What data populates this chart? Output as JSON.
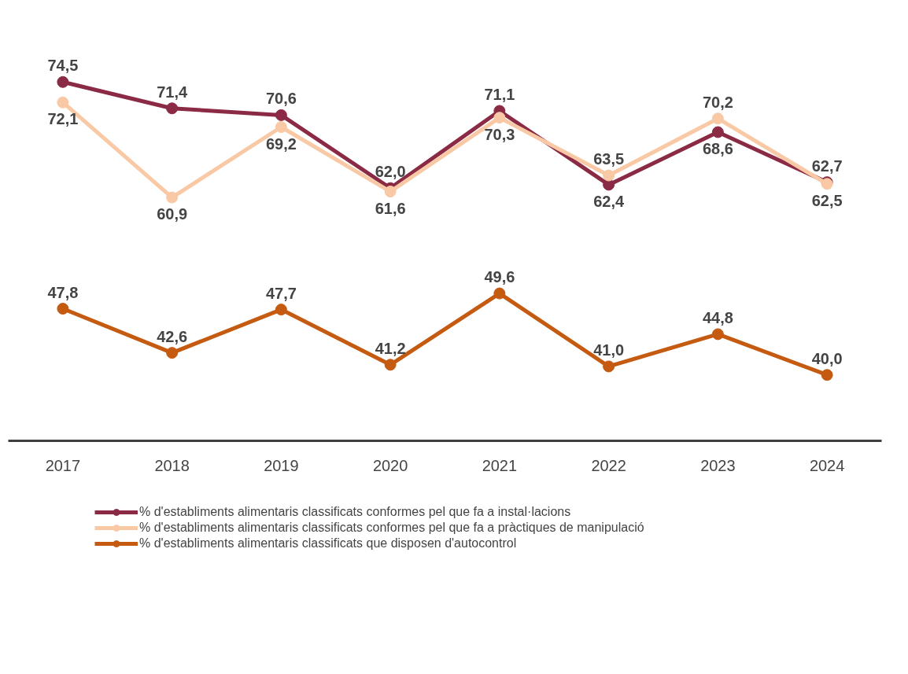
{
  "chart_data": {
    "type": "line",
    "categories": [
      "2017",
      "2018",
      "2019",
      "2020",
      "2021",
      "2022",
      "2023",
      "2024"
    ],
    "relative": false,
    "marker": "circle",
    "line_style": "solid",
    "grid": false,
    "legend": "bottom",
    "series": [
      {
        "name": "% d'establiments alimentaris classificats conformes pel que fa a instal·lacions",
        "color": "#8b2a44",
        "values": [
          74.5,
          71.4,
          70.6,
          62.0,
          71.1,
          62.4,
          68.6,
          62.7
        ],
        "value_labels": [
          "74,5",
          "71,4",
          "70,6",
          "62,0",
          "71,1",
          "62,4",
          "68,6",
          "62,7"
        ]
      },
      {
        "name": "% d'establiments alimentaris classificats conformes pel que fa a pràctiques de manipulació",
        "color": "#f9c9a6",
        "values": [
          72.1,
          60.9,
          69.2,
          61.6,
          70.3,
          63.5,
          70.2,
          62.5
        ],
        "value_labels": [
          "72,1",
          "60,9",
          "69,2",
          "61,6",
          "70,3",
          "63,5",
          "70,2",
          "62,5"
        ]
      },
      {
        "name": "% d'establiments alimentaris classificats que disposen d'autocontrol",
        "color": "#c55a11",
        "values": [
          47.8,
          42.6,
          47.7,
          41.2,
          49.6,
          41.0,
          44.8,
          40.0
        ],
        "value_labels": [
          "47,8",
          "42,6",
          "47,7",
          "41,2",
          "49,6",
          "41,0",
          "44,8",
          "40,0"
        ]
      }
    ]
  }
}
